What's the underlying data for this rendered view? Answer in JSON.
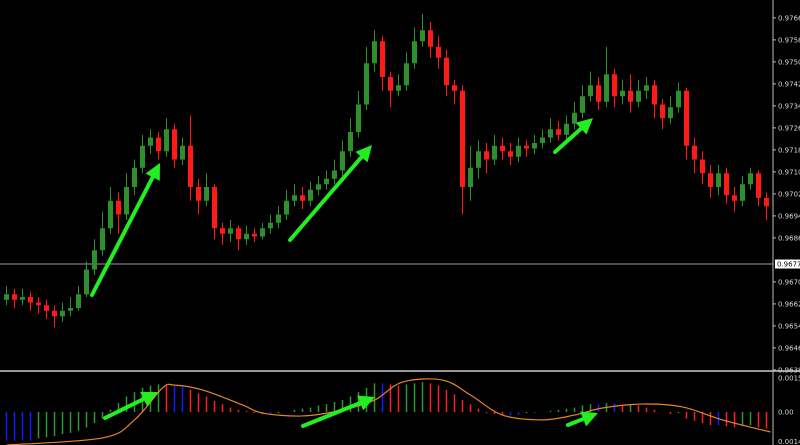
{
  "chart_data": [
    {
      "type": "candlestick",
      "panel": "price",
      "ylim": [
        0.96381,
        0.9773
      ],
      "grid": false,
      "colors": {
        "bull": "#2f8f2f",
        "bear": "#ff1a1a",
        "background": "#000000",
        "current_price_line": "#a0a0a0"
      },
      "y_tick_labels": [
        "0.97665",
        "0.97585",
        "0.97505",
        "0.97425",
        "0.97345",
        "0.97265",
        "0.97185",
        "0.97105",
        "0.97025",
        "0.96945",
        "0.96865",
        "0.96705",
        "0.96625",
        "0.96545",
        "0.96465",
        "0.96385"
      ],
      "current_price": "0.96770",
      "ohlc": [
        [
          0.9664,
          0.9669,
          0.9662,
          0.9666
        ],
        [
          0.9666,
          0.9668,
          0.9661,
          0.9664
        ],
        [
          0.9664,
          0.9668,
          0.9662,
          0.9665
        ],
        [
          0.9665,
          0.9667,
          0.966,
          0.9663
        ],
        [
          0.9663,
          0.9665,
          0.9659,
          0.9662
        ],
        [
          0.9662,
          0.9664,
          0.9657,
          0.966
        ],
        [
          0.966,
          0.9662,
          0.9654,
          0.9658
        ],
        [
          0.9658,
          0.9663,
          0.9656,
          0.966
        ],
        [
          0.966,
          0.9665,
          0.9658,
          0.9661
        ],
        [
          0.9661,
          0.9669,
          0.966,
          0.9666
        ],
        [
          0.9666,
          0.9678,
          0.9665,
          0.9675
        ],
        [
          0.9675,
          0.9686,
          0.9673,
          0.9682
        ],
        [
          0.9682,
          0.9696,
          0.968,
          0.969
        ],
        [
          0.969,
          0.9705,
          0.9688,
          0.97
        ],
        [
          0.97,
          0.9703,
          0.9688,
          0.9695
        ],
        [
          0.9695,
          0.971,
          0.9693,
          0.9705
        ],
        [
          0.9705,
          0.9715,
          0.9702,
          0.9712
        ],
        [
          0.9712,
          0.9724,
          0.971,
          0.972
        ],
        [
          0.972,
          0.9726,
          0.9717,
          0.9723
        ],
        [
          0.9723,
          0.9725,
          0.9715,
          0.9718
        ],
        [
          0.9718,
          0.973,
          0.9716,
          0.9726
        ],
        [
          0.9726,
          0.9728,
          0.9712,
          0.9715
        ],
        [
          0.9715,
          0.9723,
          0.9713,
          0.972
        ],
        [
          0.972,
          0.9731,
          0.97,
          0.9705
        ],
        [
          0.9705,
          0.9708,
          0.9695,
          0.97
        ],
        [
          0.97,
          0.971,
          0.9698,
          0.9705
        ],
        [
          0.9705,
          0.9706,
          0.9686,
          0.969
        ],
        [
          0.969,
          0.9692,
          0.9684,
          0.9688
        ],
        [
          0.9688,
          0.9693,
          0.9685,
          0.969
        ],
        [
          0.969,
          0.9691,
          0.9682,
          0.9686
        ],
        [
          0.9686,
          0.9691,
          0.9684,
          0.9688
        ],
        [
          0.9688,
          0.969,
          0.9685,
          0.9687
        ],
        [
          0.9687,
          0.9692,
          0.9686,
          0.969
        ],
        [
          0.969,
          0.9695,
          0.9688,
          0.9692
        ],
        [
          0.9692,
          0.9698,
          0.969,
          0.9695
        ],
        [
          0.9695,
          0.9704,
          0.9693,
          0.97
        ],
        [
          0.97,
          0.9706,
          0.9698,
          0.9702
        ],
        [
          0.9702,
          0.9705,
          0.9697,
          0.97
        ],
        [
          0.97,
          0.9707,
          0.9698,
          0.9704
        ],
        [
          0.9704,
          0.9709,
          0.9702,
          0.9706
        ],
        [
          0.9706,
          0.9711,
          0.9704,
          0.9708
        ],
        [
          0.9708,
          0.9715,
          0.9706,
          0.9711
        ],
        [
          0.9711,
          0.9722,
          0.9709,
          0.9718
        ],
        [
          0.9718,
          0.973,
          0.9716,
          0.9725
        ],
        [
          0.9725,
          0.974,
          0.9723,
          0.9735
        ],
        [
          0.9735,
          0.9756,
          0.9733,
          0.975
        ],
        [
          0.975,
          0.9762,
          0.9747,
          0.9758
        ],
        [
          0.9758,
          0.976,
          0.974,
          0.9745
        ],
        [
          0.9745,
          0.9747,
          0.9734,
          0.974
        ],
        [
          0.974,
          0.9746,
          0.9738,
          0.9742
        ],
        [
          0.9742,
          0.9754,
          0.974,
          0.975
        ],
        [
          0.975,
          0.9763,
          0.9748,
          0.9758
        ],
        [
          0.9758,
          0.9768,
          0.9756,
          0.9762
        ],
        [
          0.9762,
          0.9765,
          0.9752,
          0.9756
        ],
        [
          0.9756,
          0.976,
          0.9748,
          0.9752
        ],
        [
          0.9752,
          0.9755,
          0.9738,
          0.9742
        ],
        [
          0.9742,
          0.9744,
          0.9735,
          0.974
        ],
        [
          0.974,
          0.9742,
          0.9695,
          0.9705
        ],
        [
          0.9705,
          0.972,
          0.97,
          0.9712
        ],
        [
          0.9712,
          0.9722,
          0.9708,
          0.9718
        ],
        [
          0.9718,
          0.9721,
          0.971,
          0.9715
        ],
        [
          0.9715,
          0.9724,
          0.9713,
          0.972
        ],
        [
          0.972,
          0.9723,
          0.9715,
          0.9718
        ],
        [
          0.9718,
          0.9721,
          0.9713,
          0.9716
        ],
        [
          0.9716,
          0.9723,
          0.9714,
          0.972
        ],
        [
          0.972,
          0.9722,
          0.9716,
          0.9719
        ],
        [
          0.9719,
          0.9724,
          0.9717,
          0.9721
        ],
        [
          0.9721,
          0.9726,
          0.9719,
          0.9723
        ],
        [
          0.9723,
          0.973,
          0.9721,
          0.9726
        ],
        [
          0.9726,
          0.9729,
          0.9722,
          0.9724
        ],
        [
          0.9724,
          0.9731,
          0.9722,
          0.9728
        ],
        [
          0.9728,
          0.9736,
          0.9726,
          0.9732
        ],
        [
          0.9732,
          0.9742,
          0.973,
          0.9738
        ],
        [
          0.9738,
          0.9747,
          0.9736,
          0.9742
        ],
        [
          0.9742,
          0.9745,
          0.9733,
          0.9736
        ],
        [
          0.9736,
          0.9756,
          0.9734,
          0.9746
        ],
        [
          0.9746,
          0.9748,
          0.9734,
          0.9738
        ],
        [
          0.9738,
          0.9744,
          0.9735,
          0.974
        ],
        [
          0.974,
          0.9746,
          0.9732,
          0.9736
        ],
        [
          0.9736,
          0.9744,
          0.9734,
          0.974
        ],
        [
          0.974,
          0.9745,
          0.9737,
          0.9742
        ],
        [
          0.9742,
          0.9744,
          0.973,
          0.9735
        ],
        [
          0.9735,
          0.9737,
          0.9726,
          0.973
        ],
        [
          0.973,
          0.9738,
          0.9728,
          0.9734
        ],
        [
          0.9734,
          0.9743,
          0.9732,
          0.974
        ],
        [
          0.974,
          0.9741,
          0.9715,
          0.972
        ],
        [
          0.972,
          0.9723,
          0.971,
          0.9715
        ],
        [
          0.9715,
          0.9718,
          0.9706,
          0.971
        ],
        [
          0.971,
          0.9713,
          0.9701,
          0.9705
        ],
        [
          0.9705,
          0.9713,
          0.9702,
          0.971
        ],
        [
          0.971,
          0.9712,
          0.9699,
          0.9702
        ],
        [
          0.9702,
          0.9705,
          0.9696,
          0.97
        ],
        [
          0.97,
          0.9709,
          0.9698,
          0.9706
        ],
        [
          0.9706,
          0.9712,
          0.9704,
          0.971
        ],
        [
          0.971,
          0.9711,
          0.9698,
          0.9701
        ],
        [
          0.9701,
          0.9703,
          0.9693,
          0.9698
        ]
      ],
      "annotations": [
        {
          "type": "arrow",
          "color": "#22ee22"
        },
        {
          "type": "arrow",
          "color": "#22ee22"
        },
        {
          "type": "arrow",
          "color": "#22ee22"
        }
      ]
    },
    {
      "type": "histogram+line",
      "panel": "oscillator",
      "ylim": [
        -0.0015,
        0.00177
      ],
      "y_tick_labels": [
        "0.00154",
        "0.00",
        "0.0014"
      ],
      "colors": {
        "up": "#2f9a2f",
        "down": "#ff2020",
        "flat": "#1a1aff",
        "signal": "#e8842a"
      },
      "histogram": [
        -0.0013,
        -0.0013,
        -0.0013,
        -0.0013,
        -0.0012,
        -0.00115,
        -0.0011,
        -0.001,
        -0.00095,
        -0.00085,
        -0.0007,
        -0.0005,
        -0.0003,
        0.0001,
        0.0004,
        0.0007,
        0.0009,
        0.0011,
        0.0012,
        0.00125,
        0.0012,
        0.00118,
        0.00116,
        0.001,
        0.00085,
        0.0007,
        0.0005,
        0.00035,
        0.0002,
        0.0001,
        5e-05,
        -5e-05,
        -0.0001,
        -0.0001,
        -5e-05,
        0.0,
        0.0001,
        0.00015,
        0.0002,
        0.0003,
        0.00035,
        0.00045,
        0.00055,
        0.0007,
        0.0009,
        0.0011,
        0.0013,
        0.0013,
        0.00125,
        0.0012,
        0.00125,
        0.0013,
        0.00135,
        0.0013,
        0.0012,
        0.001,
        0.0008,
        0.00055,
        0.00035,
        0.00015,
        -5e-05,
        -0.0001,
        -0.00015,
        -0.00015,
        -0.00014,
        -5e-05,
        -5e-05,
        0.0,
        5e-05,
        0.0001,
        0.00015,
        0.0002,
        0.0003,
        0.00035,
        0.00034,
        0.0004,
        0.00039,
        0.0003,
        0.00035,
        0.0003,
        0.0002,
        0.0001,
        0.0,
        -0.0001,
        -5e-05,
        -0.0003,
        -0.0004,
        -0.0005,
        -0.0006,
        -0.0006,
        -0.00065,
        -0.0007,
        -0.00065,
        -0.0006,
        -0.0007,
        -0.00075
      ],
      "signal": [
        [
          0,
          -0.0015
        ],
        [
          12,
          -0.00118
        ],
        [
          16,
          -0.00036
        ],
        [
          19.5,
          0.00109
        ],
        [
          21,
          0.00122
        ],
        [
          24.5,
          0.001
        ],
        [
          29.5,
          0.00032
        ],
        [
          32,
          -5e-05
        ],
        [
          37,
          -0.00018
        ],
        [
          42,
          9e-05
        ],
        [
          46,
          0.00054
        ],
        [
          49.5,
          0.00136
        ],
        [
          54.5,
          0.00145
        ],
        [
          58,
          0.00077
        ],
        [
          62,
          -0.00014
        ],
        [
          67,
          -0.00036
        ],
        [
          71,
          -0.00014
        ],
        [
          74.5,
          0.00018
        ],
        [
          79.5,
          0.00036
        ],
        [
          84.5,
          0.00023
        ],
        [
          89.5,
          -0.00036
        ],
        [
          95.5,
          -0.00091
        ]
      ],
      "annotations": [
        {
          "type": "arrow",
          "color": "#22ee22"
        },
        {
          "type": "arrow",
          "color": "#22ee22"
        },
        {
          "type": "arrow",
          "color": "#22ee22"
        }
      ]
    }
  ]
}
